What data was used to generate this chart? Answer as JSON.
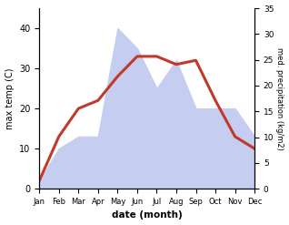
{
  "months": [
    "Jan",
    "Feb",
    "Mar",
    "Apr",
    "May",
    "Jun",
    "Jul",
    "Aug",
    "Sep",
    "Oct",
    "Nov",
    "Dec"
  ],
  "temperature": [
    2,
    13,
    20,
    22,
    28,
    33,
    33,
    31,
    32,
    22,
    13,
    10
  ],
  "precipitation_left_scale": [
    2,
    10,
    13,
    13,
    40,
    35,
    25,
    32,
    20,
    20,
    20,
    13
  ],
  "temp_color": "#c0392b",
  "precip_fill_color": "#c5cdf0",
  "precip_edge_color": "#a0aad8",
  "ylabel_left": "max temp (C)",
  "ylabel_right": "med. precipitation (kg/m2)",
  "xlabel": "date (month)",
  "ylim_left": [
    0,
    45
  ],
  "ylim_right": [
    0,
    35
  ],
  "yticks_left": [
    0,
    10,
    20,
    30,
    40
  ],
  "yticks_right": [
    0,
    5,
    10,
    15,
    20,
    25,
    30,
    35
  ],
  "temp_linewidth": 2.2,
  "fig_width": 3.18,
  "fig_height": 2.47,
  "dpi": 100
}
